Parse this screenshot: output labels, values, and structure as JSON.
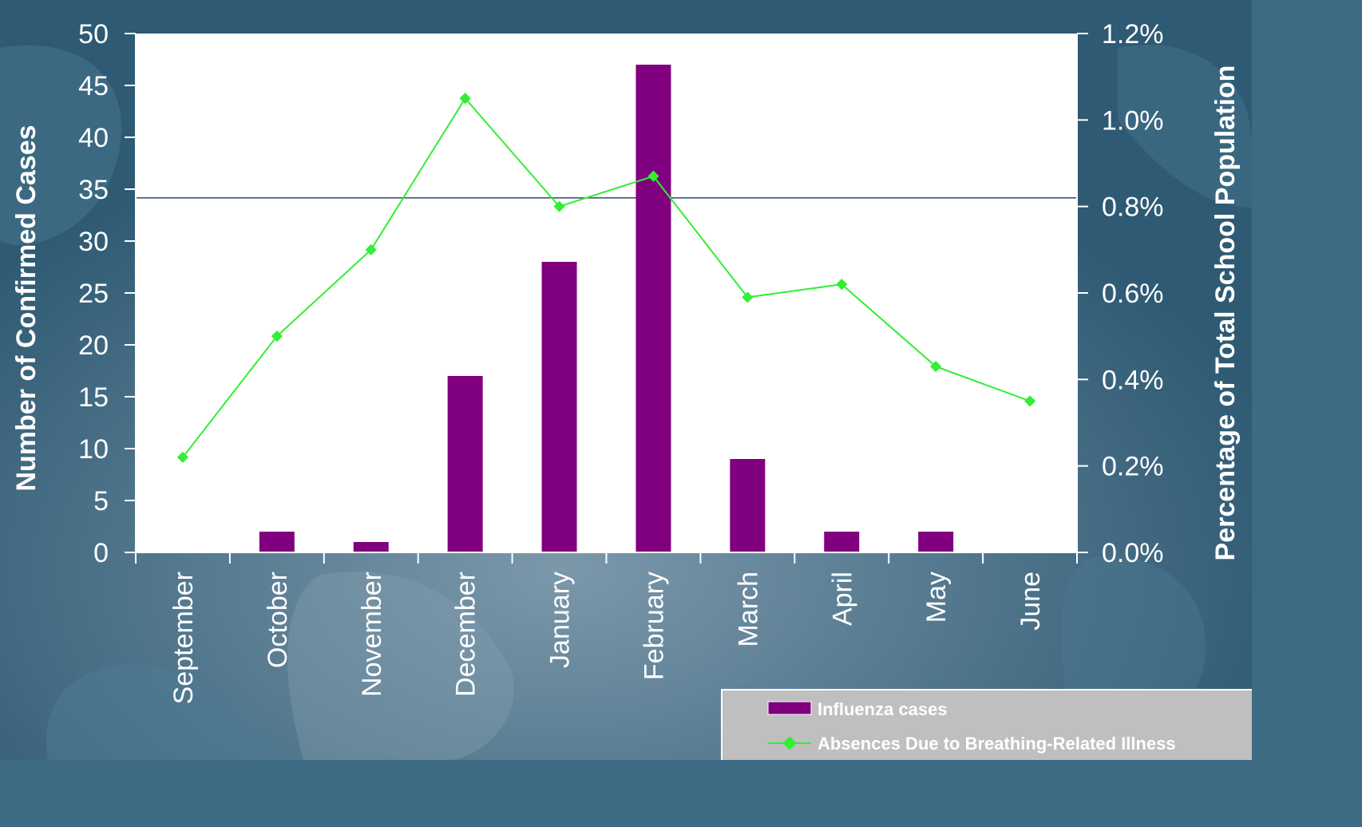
{
  "chart_data": {
    "type": "bar+line",
    "categories": [
      "September",
      "October",
      "November",
      "December",
      "January",
      "February",
      "March",
      "April",
      "May",
      "June"
    ],
    "series": [
      {
        "name": "Influenza cases",
        "type": "bar",
        "axis": "left",
        "color": "#800080",
        "values": [
          0,
          2,
          1,
          17,
          28,
          47,
          9,
          2,
          2,
          0
        ]
      },
      {
        "name": "Absences Due to Breathing-Related Illness",
        "type": "line",
        "axis": "right",
        "color": "#33ee33",
        "values": [
          0.22,
          0.5,
          0.7,
          1.05,
          0.8,
          0.87,
          0.59,
          0.62,
          0.43,
          0.35
        ]
      }
    ],
    "ylabel": "Number of Confirmed Cases",
    "y2label": "Percentage of Total School Population",
    "ylim": [
      0,
      50
    ],
    "y2lim": [
      0,
      1.2
    ],
    "yticks": [
      "0",
      "5",
      "10",
      "15",
      "20",
      "25",
      "30",
      "35",
      "40",
      "45",
      "50"
    ],
    "y2ticks": [
      "0.0%",
      "0.2%",
      "0.4%",
      "0.6%",
      "0.8%",
      "1.0%",
      "1.2%"
    ],
    "reference_line": {
      "axis": "right",
      "value": 0.82
    },
    "legend_position": "bottom-right"
  }
}
